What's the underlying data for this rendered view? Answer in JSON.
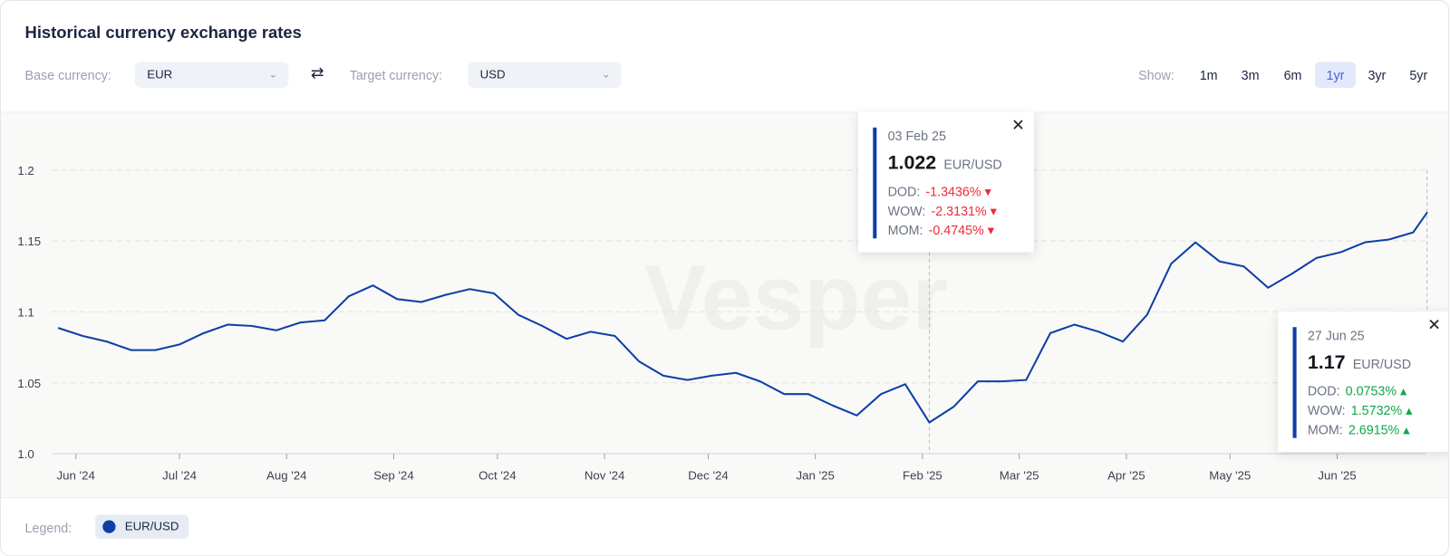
{
  "header": {
    "title": "Historical currency exchange rates"
  },
  "controls": {
    "base_label": "Base currency:",
    "base_value": "EUR",
    "target_label": "Target currency:",
    "target_value": "USD",
    "swap_icon": "swap-arrows-icon",
    "show_label": "Show:",
    "ranges": [
      "1m",
      "3m",
      "6m",
      "1yr",
      "3yr",
      "5yr"
    ],
    "active_range": "1yr"
  },
  "watermark": "Vesper",
  "tooltips": [
    {
      "date": "03 Feb 25",
      "value": "1.022",
      "pair": "EUR/USD",
      "rows": [
        {
          "label": "DOD:",
          "value": "-1.3436%"
        },
        {
          "label": "WOW:",
          "value": "-2.3131%"
        },
        {
          "label": "MOM:",
          "value": "-0.4745%"
        }
      ],
      "direction": "down"
    },
    {
      "date": "27 Jun 25",
      "value": "1.17",
      "pair": "EUR/USD",
      "rows": [
        {
          "label": "DOD:",
          "value": "0.0753%"
        },
        {
          "label": "WOW:",
          "value": "1.5732%"
        },
        {
          "label": "MOM:",
          "value": "2.6915%"
        }
      ],
      "direction": "up"
    }
  ],
  "legend": {
    "label": "Legend:",
    "series": "EUR/USD"
  },
  "colors": {
    "series": "#0d3fa6",
    "negative": "#ee2b3a",
    "positive": "#10a64a"
  },
  "chart_data": {
    "type": "line",
    "title": "",
    "ylim": [
      1.0,
      1.2
    ],
    "yticks": [
      "1.0",
      "1.05",
      "1.1",
      "1.15",
      "1.2"
    ],
    "xticks": [
      {
        "date": "2024-06-01",
        "label": "Jun '24"
      },
      {
        "date": "2024-07-01",
        "label": "Jul '24"
      },
      {
        "date": "2024-08-01",
        "label": "Aug '24"
      },
      {
        "date": "2024-09-01",
        "label": "Sep '24"
      },
      {
        "date": "2024-10-01",
        "label": "Oct '24"
      },
      {
        "date": "2024-11-01",
        "label": "Nov '24"
      },
      {
        "date": "2024-12-01",
        "label": "Dec '24"
      },
      {
        "date": "2025-01-01",
        "label": "Jan '25"
      },
      {
        "date": "2025-02-01",
        "label": "Feb '25"
      },
      {
        "date": "2025-03-01",
        "label": "Mar '25"
      },
      {
        "date": "2025-04-01",
        "label": "Apr '25"
      },
      {
        "date": "2025-05-01",
        "label": "May '25"
      },
      {
        "date": "2025-06-01",
        "label": "Jun '25"
      }
    ],
    "grid": true,
    "legend_position": "bottom-left",
    "series": [
      {
        "name": "EUR/USD",
        "x": [
          "2024-05-27",
          "2024-06-03",
          "2024-06-10",
          "2024-06-17",
          "2024-06-24",
          "2024-07-01",
          "2024-07-08",
          "2024-07-15",
          "2024-07-22",
          "2024-07-29",
          "2024-08-05",
          "2024-08-12",
          "2024-08-19",
          "2024-08-26",
          "2024-09-02",
          "2024-09-09",
          "2024-09-16",
          "2024-09-23",
          "2024-09-30",
          "2024-10-07",
          "2024-10-14",
          "2024-10-21",
          "2024-10-28",
          "2024-11-04",
          "2024-11-11",
          "2024-11-18",
          "2024-11-25",
          "2024-12-02",
          "2024-12-09",
          "2024-12-16",
          "2024-12-23",
          "2024-12-30",
          "2025-01-06",
          "2025-01-13",
          "2025-01-20",
          "2025-01-27",
          "2025-02-03",
          "2025-02-10",
          "2025-02-17",
          "2025-02-24",
          "2025-03-03",
          "2025-03-10",
          "2025-03-17",
          "2025-03-24",
          "2025-03-31",
          "2025-04-07",
          "2025-04-14",
          "2025-04-21",
          "2025-04-28",
          "2025-05-05",
          "2025-05-12",
          "2025-05-19",
          "2025-05-26",
          "2025-06-02",
          "2025-06-09",
          "2025-06-16",
          "2025-06-23",
          "2025-06-27"
        ],
        "y": [
          1.0886,
          1.083,
          1.079,
          1.073,
          1.073,
          1.077,
          1.085,
          1.091,
          1.09,
          1.087,
          1.0925,
          1.094,
          1.111,
          1.1186,
          1.109,
          1.107,
          1.112,
          1.116,
          1.113,
          1.098,
          1.09,
          1.081,
          1.086,
          1.083,
          1.065,
          1.055,
          1.052,
          1.055,
          1.057,
          1.051,
          1.042,
          1.042,
          1.034,
          1.027,
          1.042,
          1.049,
          1.022,
          1.033,
          1.051,
          1.051,
          1.052,
          1.085,
          1.091,
          1.086,
          1.079,
          1.098,
          1.134,
          1.149,
          1.1355,
          1.132,
          1.117,
          1.127,
          1.138,
          1.142,
          1.149,
          1.151,
          1.156,
          1.17
        ]
      }
    ]
  }
}
